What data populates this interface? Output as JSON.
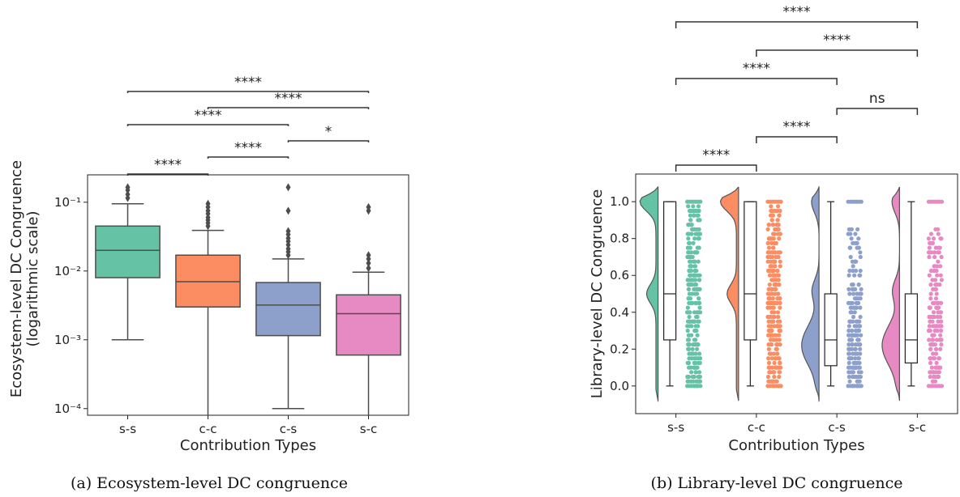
{
  "chart_data": [
    {
      "type": "box",
      "caption": "(a) Ecosystem-level DC congruence",
      "xlabel": "Contribution Types",
      "ylabel": "Ecosystem-level DC Congruence",
      "ylabel2": "(logarithmic scale)",
      "yscale": "log",
      "ylim": [
        8e-05,
        0.25
      ],
      "yticks": [
        {
          "value": 0.1,
          "label": "10⁻¹"
        },
        {
          "value": 0.01,
          "label": "10⁻²"
        },
        {
          "value": 0.001,
          "label": "10⁻³"
        },
        {
          "value": 0.0001,
          "label": "10⁻⁴"
        }
      ],
      "categories": [
        "s-s",
        "c-c",
        "c-s",
        "s-c"
      ],
      "colors": [
        "#66c2a5",
        "#fc8d62",
        "#8da0cb",
        "#e78ac3"
      ],
      "boxes": [
        {
          "whislo": 0.001,
          "q1": 0.008,
          "median": 0.02,
          "q3": 0.045,
          "whishi": 0.095,
          "fliers": [
            0.115,
            0.13,
            0.15,
            0.165
          ]
        },
        {
          "whislo": 5e-05,
          "q1": 0.003,
          "median": 0.007,
          "q3": 0.017,
          "whishi": 0.039,
          "fliers": [
            0.045,
            0.05,
            0.055,
            0.06,
            0.068,
            0.075,
            0.085,
            0.095
          ]
        },
        {
          "whislo": 0.0001,
          "q1": 0.00115,
          "median": 0.0032,
          "q3": 0.0068,
          "whishi": 0.015,
          "fliers": [
            0.017,
            0.019,
            0.021,
            0.024,
            0.027,
            0.03,
            0.034,
            0.038,
            0.075,
            0.165
          ]
        },
        {
          "whislo": 5e-05,
          "q1": 0.0006,
          "median": 0.0024,
          "q3": 0.0045,
          "whishi": 0.0096,
          "fliers": [
            0.011,
            0.013,
            0.015,
            0.017,
            0.075,
            0.085
          ]
        }
      ],
      "significance": [
        {
          "from": 0,
          "to": 1,
          "label": "****"
        },
        {
          "from": 1,
          "to": 2,
          "label": "****"
        },
        {
          "from": 2,
          "to": 3,
          "label": "*"
        },
        {
          "from": 0,
          "to": 2,
          "label": "****"
        },
        {
          "from": 1,
          "to": 3,
          "label": "****"
        },
        {
          "from": 0,
          "to": 3,
          "label": "****"
        }
      ]
    },
    {
      "type": "raincloud",
      "caption": "(b) Library-level DC congruence",
      "xlabel": "Contribution Types",
      "ylabel": "Library-level DC Congruence",
      "ylim": [
        -0.15,
        1.15
      ],
      "yticks": [
        0.0,
        0.2,
        0.4,
        0.6,
        0.8,
        1.0
      ],
      "ytick_labels": [
        "0.0",
        "0.2",
        "0.4",
        "0.6",
        "0.8",
        "1.0"
      ],
      "categories": [
        "s-s",
        "c-c",
        "c-s",
        "s-c"
      ],
      "colors": [
        "#66c2a5",
        "#fc8d62",
        "#8da0cb",
        "#e78ac3"
      ],
      "boxes": [
        {
          "whislo": 0.0,
          "q1": 0.25,
          "median": 0.5,
          "q3": 1.0,
          "whishi": 1.0,
          "max_point": 0.97
        },
        {
          "whislo": 0.0,
          "q1": 0.25,
          "median": 0.5,
          "q3": 1.0,
          "whishi": 1.0,
          "max_point": 0.97
        },
        {
          "whislo": 0.0,
          "q1": 0.11,
          "median": 0.25,
          "q3": 0.5,
          "whishi": 1.0,
          "max_point": 0.87
        },
        {
          "whislo": 0.0,
          "q1": 0.125,
          "median": 0.25,
          "q3": 0.5,
          "whishi": 1.0,
          "max_point": 0.86
        }
      ],
      "significance": [
        {
          "from": 0,
          "to": 1,
          "label": "****"
        },
        {
          "from": 1,
          "to": 2,
          "label": "****"
        },
        {
          "from": 2,
          "to": 3,
          "label": "ns"
        },
        {
          "from": 0,
          "to": 2,
          "label": "****"
        },
        {
          "from": 1,
          "to": 3,
          "label": "****"
        },
        {
          "from": 0,
          "to": 3,
          "label": "****"
        }
      ]
    }
  ]
}
